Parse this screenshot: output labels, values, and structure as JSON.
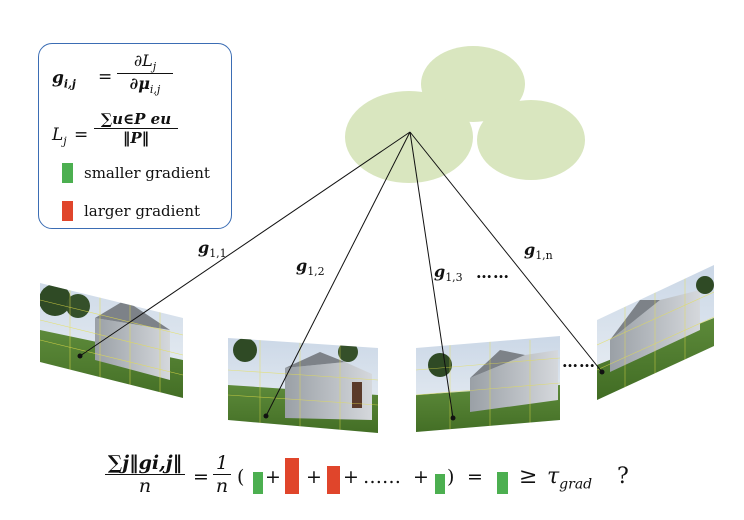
{
  "legend": {
    "eq1_lhs": "g",
    "eq1_lhs_sub": "i,j",
    "eq1_rhs_num": "∂L",
    "eq1_rhs_num_sub": "j",
    "eq1_rhs_den": "∂μ",
    "eq1_rhs_den_sub": "i,j",
    "eq2_lhs": "L",
    "eq2_lhs_sub": "j",
    "eq2_num": "∑u∈P eu",
    "eq2_den": "‖P‖",
    "items": [
      {
        "label": "smaller gradient",
        "color": "#4caf50"
      },
      {
        "label": "larger gradient",
        "color": "#e0452b"
      }
    ]
  },
  "gradient_labels": [
    {
      "name": "g",
      "sub": "1,1"
    },
    {
      "name": "g",
      "sub": "1,2"
    },
    {
      "name": "g",
      "sub": "1,3"
    },
    {
      "name": "g",
      "sub": "1,n"
    }
  ],
  "ellipsis_top": "……",
  "ellipsis_views": "……",
  "formula": {
    "lhs_num": "∑j‖gi,j‖",
    "lhs_den": "n",
    "equals": "=",
    "coef_num": "1",
    "coef_den": "n",
    "open": "(",
    "plus": "+",
    "dots": "……",
    "close": ")",
    "geq": "≥",
    "tau": "τ",
    "tau_sub": "grad",
    "question": "?"
  },
  "colors": {
    "ellipse": "#d9e6bf",
    "legend_border": "#3b6db4",
    "green": "#4caf50",
    "red": "#e0452b"
  }
}
